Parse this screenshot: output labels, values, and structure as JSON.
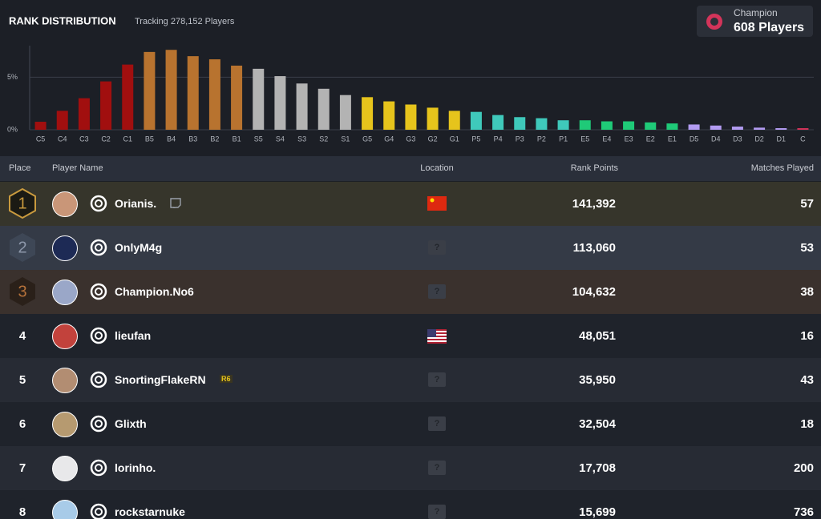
{
  "header": {
    "title": "RANK DISTRIBUTION",
    "subtitle": "Tracking 278,152 Players",
    "badge_rank": "Champion",
    "badge_count": "608 Players"
  },
  "chart_data": {
    "type": "bar",
    "categories": [
      "C5",
      "C4",
      "C3",
      "C2",
      "C1",
      "B5",
      "B4",
      "B3",
      "B2",
      "B1",
      "S5",
      "S4",
      "S3",
      "S2",
      "S1",
      "G5",
      "G4",
      "G3",
      "G2",
      "G1",
      "P5",
      "P4",
      "P3",
      "P2",
      "P1",
      "E5",
      "E4",
      "E3",
      "E2",
      "E1",
      "D5",
      "D4",
      "D3",
      "D2",
      "D1",
      "C"
    ],
    "values": [
      0.76,
      1.8,
      3.0,
      4.6,
      6.2,
      7.4,
      7.6,
      7.0,
      6.7,
      6.1,
      5.8,
      5.1,
      4.4,
      3.9,
      3.3,
      3.1,
      2.7,
      2.4,
      2.1,
      1.8,
      1.7,
      1.4,
      1.2,
      1.1,
      0.9,
      0.9,
      0.8,
      0.8,
      0.7,
      0.6,
      0.5,
      0.4,
      0.3,
      0.2,
      0.15,
      0.15
    ],
    "colors": [
      "#a10f0f",
      "#a10f0f",
      "#a10f0f",
      "#a10f0f",
      "#a10f0f",
      "#b8732f",
      "#b8732f",
      "#b8732f",
      "#b8732f",
      "#b8732f",
      "#b3b3b3",
      "#b3b3b3",
      "#b3b3b3",
      "#b3b3b3",
      "#b3b3b3",
      "#e6c41c",
      "#e6c41c",
      "#e6c41c",
      "#e6c41c",
      "#e6c41c",
      "#3fc9bb",
      "#3fc9bb",
      "#3fc9bb",
      "#3fc9bb",
      "#3fc9bb",
      "#1fca78",
      "#1fca78",
      "#1fca78",
      "#1fca78",
      "#1fca78",
      "#b39cf2",
      "#b39cf2",
      "#b39cf2",
      "#b39cf2",
      "#b39cf2",
      "#d3345a"
    ],
    "ylim": [
      0,
      8
    ],
    "yticks": [
      {
        "value": 0,
        "label": "0%"
      },
      {
        "value": 5,
        "label": "5%"
      }
    ],
    "grid": true
  },
  "table": {
    "columns": [
      "Place",
      "Player Name",
      "Location",
      "Rank Points",
      "Matches Played"
    ],
    "rows": [
      {
        "place": "1",
        "name": "Orianis.",
        "points": "141,392",
        "matches": "57"
      },
      {
        "place": "2",
        "name": "OnlyM4g",
        "location": "?",
        "points": "113,060",
        "matches": "53"
      },
      {
        "place": "3",
        "name": "Champion.No6",
        "location": "?",
        "points": "104,632",
        "matches": "38"
      },
      {
        "place": "4",
        "name": "lieufan",
        "points": "48,051",
        "matches": "16"
      },
      {
        "place": "5",
        "name": "SnortingFlakeRN",
        "tag": "R6",
        "location": "?",
        "points": "35,950",
        "matches": "43"
      },
      {
        "place": "6",
        "name": "Glixth",
        "location": "?",
        "points": "32,504",
        "matches": "18"
      },
      {
        "place": "7",
        "name": "lorinho.",
        "location": "?",
        "points": "17,708",
        "matches": "200"
      },
      {
        "place": "8",
        "name": "rockstarnuke",
        "location": "?",
        "points": "15,699",
        "matches": "736"
      }
    ]
  }
}
